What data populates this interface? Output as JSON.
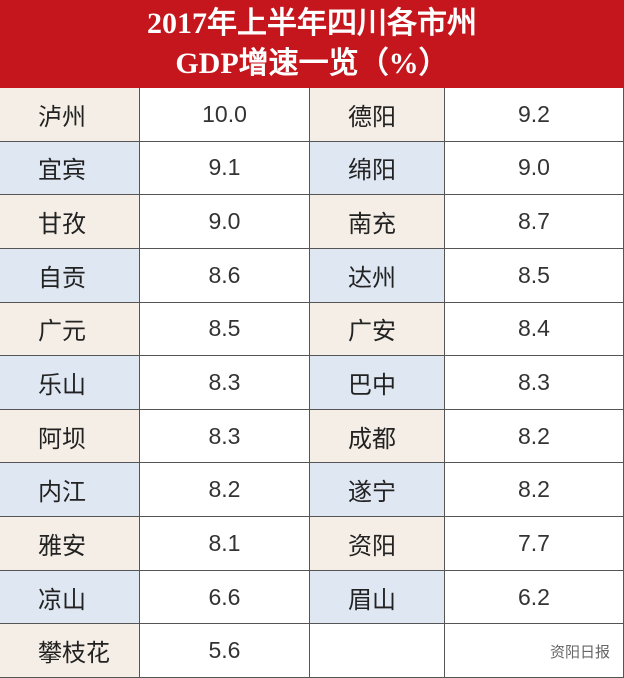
{
  "header": {
    "title_lines": [
      "2017年上半年四川各市州",
      "GDP增速一览（%）"
    ]
  },
  "table": {
    "rows": [
      [
        "泸州",
        "10.0",
        "德阳",
        "9.2"
      ],
      [
        "宜宾",
        "9.1",
        "绵阳",
        "9.0"
      ],
      [
        "甘孜",
        "9.0",
        "南充",
        "8.7"
      ],
      [
        "自贡",
        "8.6",
        "达州",
        "8.5"
      ],
      [
        "广元",
        "8.5",
        "广安",
        "8.4"
      ],
      [
        "乐山",
        "8.3",
        "巴中",
        "8.3"
      ],
      [
        "阿坝",
        "8.3",
        "成都",
        "8.2"
      ],
      [
        "内江",
        "8.2",
        "遂宁",
        "8.2"
      ],
      [
        "雅安",
        "8.1",
        "资阳",
        "7.7"
      ],
      [
        "凉山",
        "6.6",
        "眉山",
        "6.2"
      ],
      [
        "攀枝花",
        "5.6"
      ]
    ]
  },
  "footer": {
    "source": "资阳日报"
  }
}
